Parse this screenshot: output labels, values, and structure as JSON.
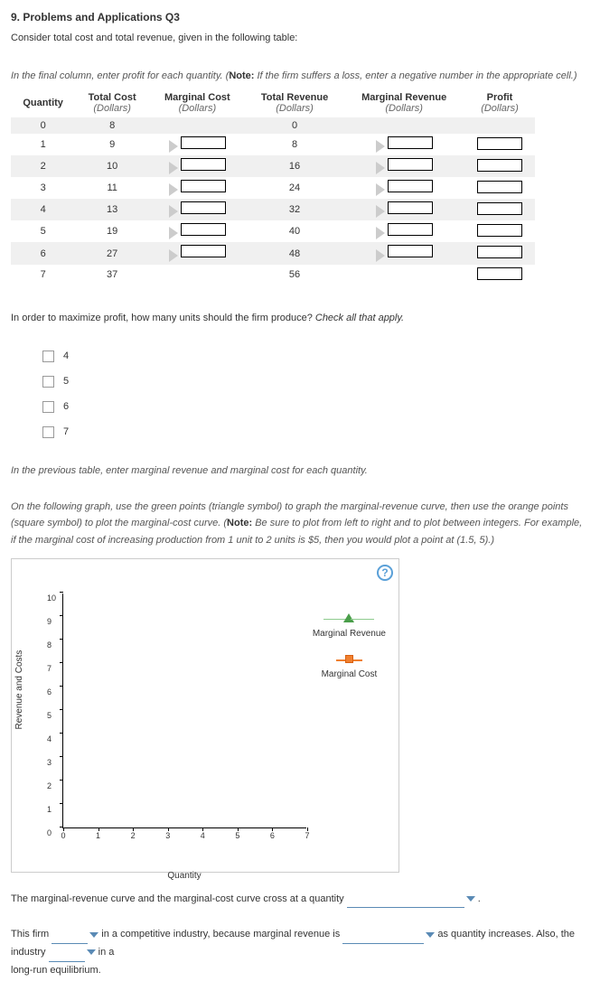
{
  "title": "9. Problems and Applications Q3",
  "prompt": "Consider total cost and total revenue, given in the following table:",
  "instruction1": "In the final column, enter profit for each quantity. (",
  "note_label": "Note:",
  "instruction1b": " If the firm suffers a loss, enter a negative number in the appropriate cell.)",
  "table": {
    "headers": {
      "qty": "Quantity",
      "tc": "Total Cost",
      "tc_sub": "(Dollars)",
      "mc": "Marginal Cost",
      "mc_sub": "(Dollars)",
      "tr": "Total Revenue",
      "tr_sub": "(Dollars)",
      "mr": "Marginal Revenue",
      "mr_sub": "(Dollars)",
      "pr": "Profit",
      "pr_sub": "(Dollars)"
    },
    "rows": [
      {
        "q": "0",
        "tc": "8",
        "tr": "0",
        "has_mc": false,
        "has_mr": false,
        "has_pr": false
      },
      {
        "q": "1",
        "tc": "9",
        "tr": "8",
        "has_mc": true,
        "has_mr": true,
        "has_pr": true
      },
      {
        "q": "2",
        "tc": "10",
        "tr": "16",
        "has_mc": true,
        "has_mr": true,
        "has_pr": true
      },
      {
        "q": "3",
        "tc": "11",
        "tr": "24",
        "has_mc": true,
        "has_mr": true,
        "has_pr": true
      },
      {
        "q": "4",
        "tc": "13",
        "tr": "32",
        "has_mc": true,
        "has_mr": true,
        "has_pr": true
      },
      {
        "q": "5",
        "tc": "19",
        "tr": "40",
        "has_mc": true,
        "has_mr": true,
        "has_pr": true
      },
      {
        "q": "6",
        "tc": "27",
        "tr": "48",
        "has_mc": true,
        "has_mr": true,
        "has_pr": true
      },
      {
        "q": "7",
        "tc": "37",
        "tr": "56",
        "has_mc": false,
        "has_mr": false,
        "has_pr": true
      }
    ]
  },
  "question2": "In order to maximize profit, how many units should the firm produce? ",
  "question2_hint": "Check all that apply.",
  "checkboxes": [
    "4",
    "5",
    "6",
    "7"
  ],
  "instruction3": "In the previous table, enter marginal revenue and marginal cost for each quantity.",
  "instruction4": "On the following graph, use the green points (triangle symbol) to graph the marginal-revenue curve, then use the orange points (square symbol) to plot the marginal-cost curve. (",
  "instruction4b": " Be sure to plot from left to right and to plot between integers. For example, if the marginal cost of increasing production from 1 unit to 2 units is $5, then you would plot a point at (1.5, 5).)",
  "chart": {
    "y_label": "Revenue and Costs",
    "x_label": "Quantity",
    "y_ticks": [
      "0",
      "1",
      "2",
      "3",
      "4",
      "5",
      "6",
      "7",
      "8",
      "9",
      "10"
    ],
    "x_ticks": [
      "0",
      "1",
      "2",
      "3",
      "4",
      "5",
      "6",
      "7"
    ],
    "legend_mr": "Marginal Revenue",
    "legend_mc": "Marginal Cost"
  },
  "bottom": {
    "line1a": "The marginal-revenue curve and the marginal-cost curve cross at a quantity ",
    "line1b": " .",
    "line2a": "This firm ",
    "line2b": " in a competitive industry, because marginal revenue is ",
    "line2c": " as quantity increases. Also, the industry ",
    "line2d": " in a",
    "line3": "long-run equilibrium."
  }
}
